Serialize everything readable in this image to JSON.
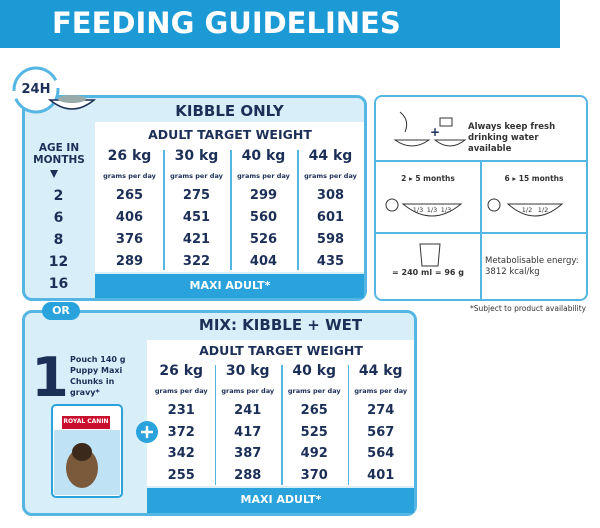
{
  "header": {
    "title": "FEEDING GUIDELINES",
    "badge": "24H"
  },
  "kibble": {
    "title": "KIBBLE ONLY",
    "age_label": "AGE IN MONTHS",
    "ages": [
      "2",
      "6",
      "8",
      "12",
      "16"
    ],
    "table_title": "ADULT TARGET WEIGHT",
    "weights": [
      "26 kg",
      "30 kg",
      "40 kg",
      "44 kg"
    ],
    "unit": "grams per day",
    "rows": [
      [
        265,
        275,
        299,
        308
      ],
      [
        406,
        451,
        560,
        601
      ],
      [
        376,
        421,
        526,
        598
      ],
      [
        289,
        322,
        404,
        435
      ]
    ],
    "footer": "MAXI ADULT*"
  },
  "or": "OR",
  "tips": {
    "water": "Always keep fresh drinking water available",
    "young": {
      "label": "2 ▸ 5 months",
      "fractions": [
        "1/3",
        "1/3",
        "1/3"
      ]
    },
    "old": {
      "label": "6 ▸ 15 months",
      "fractions": [
        "1/2",
        "1/2"
      ]
    },
    "measure": "= 240 ml = 96 g",
    "energy": "Metabolisable energy: 3812 kcal/kg"
  },
  "note": "*Subject to product availability",
  "mix": {
    "title": "MIX: KIBBLE + WET",
    "count": "1",
    "pouch": "Pouch 140 g Puppy Maxi Chunks in gravy*",
    "brand": "ROYAL CANIN",
    "table_title": "ADULT TARGET WEIGHT",
    "weights": [
      "26 kg",
      "30 kg",
      "40 kg",
      "44 kg"
    ],
    "unit": "grams per day",
    "rows": [
      [
        231,
        241,
        265,
        274
      ],
      [
        372,
        417,
        525,
        567
      ],
      [
        342,
        387,
        492,
        564
      ],
      [
        255,
        288,
        370,
        401
      ]
    ],
    "footer": "MAXI ADULT*"
  }
}
